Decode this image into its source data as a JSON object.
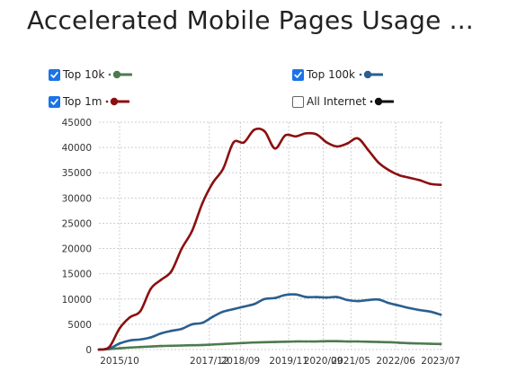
{
  "title": "Accelerated Mobile Pages Usage ...",
  "legend": [
    {
      "label": "Top 10k",
      "checked": true,
      "color": "#4e7a4e"
    },
    {
      "label": "Top 100k",
      "checked": true,
      "color": "#2a5f8f"
    },
    {
      "label": "Top 1m",
      "checked": true,
      "color": "#8b0f0f"
    },
    {
      "label": "All Internet",
      "checked": false,
      "color": "#111111"
    }
  ],
  "chart_data": {
    "type": "line",
    "title": "Accelerated Mobile Pages Usage ...",
    "xlabel": "",
    "ylabel": "",
    "ylim": [
      0,
      45000
    ],
    "y_ticks": [
      "0",
      "5000",
      "10000",
      "15000",
      "20000",
      "25000",
      "30000",
      "35000",
      "40000",
      "45000"
    ],
    "x_tick_labels": [
      "2015/10",
      "2017/12",
      "2018/09",
      "2019/11",
      "2020/09",
      "2021/05",
      "2022/06",
      "2023/07"
    ],
    "grid": true,
    "legend_position": "top",
    "series": [
      {
        "name": "Top 10k",
        "color": "#4e7a4e",
        "x": [
          "2015/04",
          "2015/07",
          "2015/10",
          "2016/01",
          "2016/04",
          "2016/07",
          "2016/10",
          "2017/01",
          "2017/04",
          "2017/07",
          "2017/10",
          "2018/01",
          "2018/04",
          "2018/07",
          "2018/10",
          "2019/01",
          "2019/04",
          "2019/07",
          "2019/10",
          "2020/01",
          "2020/04",
          "2020/07",
          "2020/10",
          "2021/01",
          "2021/04",
          "2021/07",
          "2021/10",
          "2022/01",
          "2022/04",
          "2022/07",
          "2022/10",
          "2023/01",
          "2023/04",
          "2023/07"
        ],
        "values": [
          0,
          100,
          250,
          400,
          500,
          600,
          700,
          750,
          800,
          850,
          900,
          1000,
          1100,
          1200,
          1300,
          1400,
          1450,
          1500,
          1550,
          1600,
          1600,
          1600,
          1650,
          1650,
          1600,
          1600,
          1550,
          1500,
          1450,
          1350,
          1250,
          1200,
          1150,
          1100
        ]
      },
      {
        "name": "Top 100k",
        "color": "#2a5f8f",
        "x": [
          "2015/04",
          "2015/07",
          "2015/10",
          "2016/01",
          "2016/04",
          "2016/07",
          "2016/10",
          "2017/01",
          "2017/04",
          "2017/07",
          "2017/10",
          "2018/01",
          "2018/04",
          "2018/07",
          "2018/10",
          "2019/01",
          "2019/04",
          "2019/07",
          "2019/10",
          "2020/01",
          "2020/04",
          "2020/07",
          "2020/10",
          "2021/01",
          "2021/04",
          "2021/07",
          "2021/10",
          "2022/01",
          "2022/04",
          "2022/07",
          "2022/10",
          "2023/01",
          "2023/04",
          "2023/07"
        ],
        "values": [
          0,
          200,
          1200,
          1800,
          2000,
          2400,
          3200,
          3700,
          4100,
          5000,
          5300,
          6500,
          7500,
          8000,
          8500,
          9000,
          10000,
          10200,
          10800,
          10900,
          10400,
          10400,
          10300,
          10400,
          9800,
          9600,
          9800,
          9900,
          9200,
          8700,
          8200,
          7800,
          7500,
          6900
        ]
      },
      {
        "name": "Top 1m",
        "color": "#8b0f0f",
        "x": [
          "2015/04",
          "2015/07",
          "2015/10",
          "2016/01",
          "2016/04",
          "2016/07",
          "2016/10",
          "2017/01",
          "2017/04",
          "2017/07",
          "2017/10",
          "2018/01",
          "2018/04",
          "2018/07",
          "2018/10",
          "2019/01",
          "2019/04",
          "2019/07",
          "2019/10",
          "2020/01",
          "2020/04",
          "2020/07",
          "2020/10",
          "2021/01",
          "2021/04",
          "2021/07",
          "2021/10",
          "2022/01",
          "2022/04",
          "2022/07",
          "2022/10",
          "2023/01",
          "2023/04",
          "2023/07"
        ],
        "values": [
          0,
          500,
          4200,
          6400,
          7600,
          12000,
          13800,
          15500,
          20000,
          23500,
          29000,
          33000,
          35800,
          41000,
          41000,
          43500,
          43200,
          39800,
          42400,
          42200,
          42800,
          42600,
          41000,
          40200,
          40800,
          41800,
          39500,
          37000,
          35500,
          34500,
          34000,
          33500,
          32800,
          32600
        ]
      }
    ]
  }
}
